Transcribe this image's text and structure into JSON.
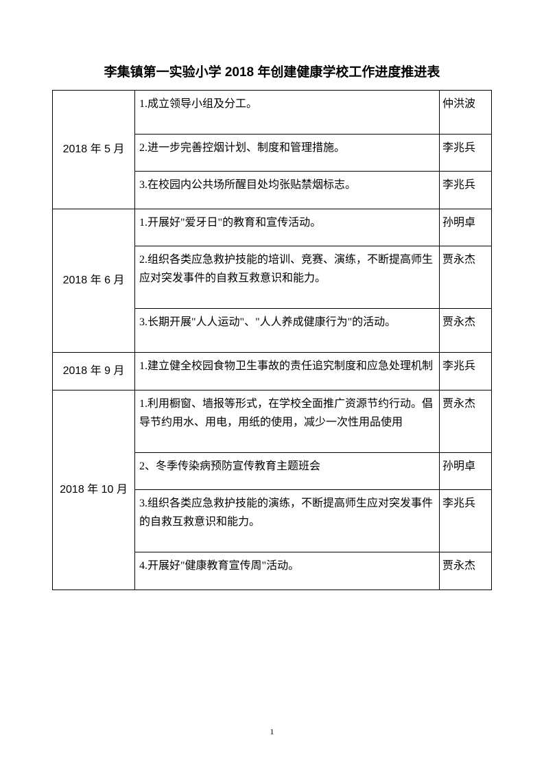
{
  "title": "李集镇第一实验小学 2018 年创建健康学校工作进度推进表",
  "pageNumber": "1",
  "months": {
    "may": "2018 年 5 月",
    "jun": "2018 年 6 月",
    "sep": "2018 年 9 月",
    "oct": "2018 年 10 月"
  },
  "tasks": {
    "may1": "1.成立领导小组及分工。",
    "may2": "2.进一步完善控烟计划、制度和管理措施。",
    "may3": "3.在校园内公共场所醒目处均张贴禁烟标志。",
    "jun1": "1.开展好\"爱牙日\"的教育和宣传活动。",
    "jun2": "2.组织各类应急救护技能的培训、竞赛、演练，不断提高师生应对突发事件的自救互救意识和能力。",
    "jun3": "3.长期开展\"人人运动\"、\"人人养成健康行为\"的活动。",
    "sep1": "1.建立健全校园食物卫生事故的责任追究制度和应急处理机制",
    "oct1": "1.利用橱窗、墙报等形式，在学校全面推广资源节约行动。倡导节约用水、用电，用纸的使用，减少一次性用品使用",
    "oct2": "2、冬季传染病预防宣传教育主题班会",
    "oct3": "3.组织各类应急救护技能的演练，不断提高师生应对突发事件的自救互救意识和能力。",
    "oct4": "4.开展好\"健康教育宣传周\"活动。"
  },
  "persons": {
    "may1": "仲洪波",
    "may2": "李兆兵",
    "may3": "李兆兵",
    "jun1": "孙明卓",
    "jun2": "贾永杰",
    "jun3": "贾永杰",
    "sep1": "李兆兵",
    "oct1": "贾永杰",
    "oct2": "孙明卓",
    "oct3": "李兆兵",
    "oct4": "贾永杰"
  }
}
